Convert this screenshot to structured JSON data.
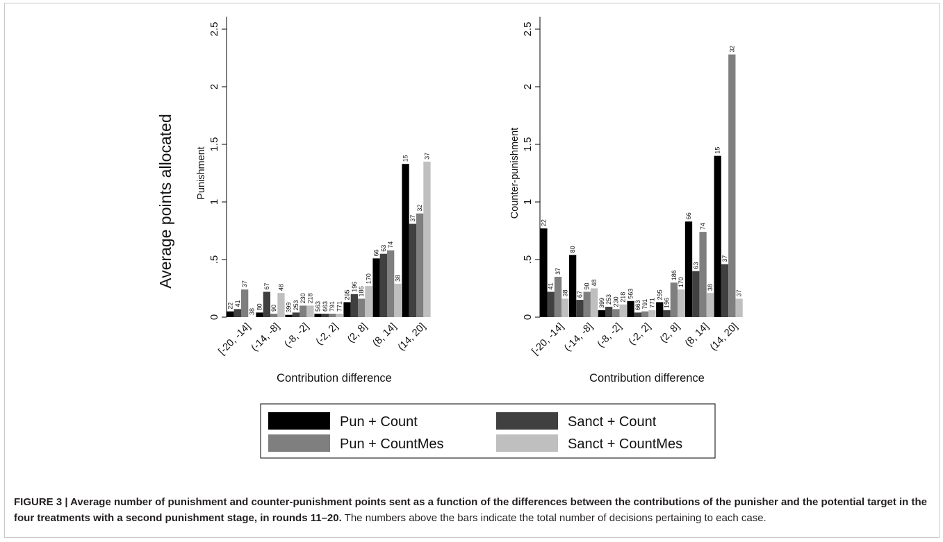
{
  "chart_data": [
    {
      "type": "bar",
      "ylabel": "Punishment",
      "xlabel": "Contribution difference",
      "categories": [
        "[-20, -14]",
        "(-14, -8]",
        "(-8, -2]",
        "(-2, 2]",
        "(2, 8]",
        "(8, 14]",
        "(14, 20]"
      ],
      "yticks": [
        "0",
        ".5",
        "1",
        "1.5",
        "2",
        "2.5"
      ],
      "ylim": [
        0,
        2.5
      ],
      "series": [
        {
          "name": "Pun + Count",
          "values": [
            0.05,
            0.04,
            0.02,
            0.03,
            0.13,
            0.51,
            1.33
          ],
          "counts": [
            "22",
            "80",
            "399",
            "563",
            "295",
            "66",
            "15"
          ]
        },
        {
          "name": "Sanct + Count",
          "values": [
            0.07,
            0.22,
            0.04,
            0.03,
            0.2,
            0.55,
            0.81
          ],
          "counts": [
            "41",
            "67",
            "253",
            "663",
            "196",
            "63",
            "37"
          ]
        },
        {
          "name": "Pun + CountMes",
          "values": [
            0.24,
            0.03,
            0.1,
            0.03,
            0.16,
            0.58,
            0.9
          ],
          "counts": [
            "37",
            "90",
            "230",
            "791",
            "186",
            "74",
            "32"
          ]
        },
        {
          "name": "Sanct + CountMes",
          "values": [
            0.0,
            0.21,
            0.1,
            0.03,
            0.27,
            0.29,
            1.35
          ],
          "counts": [
            "38",
            "48",
            "218",
            "771",
            "170",
            "38",
            "37"
          ]
        }
      ]
    },
    {
      "type": "bar",
      "ylabel": "Counter-punishment",
      "xlabel": "Contribution difference",
      "categories": [
        "[-20, -14]",
        "(-14, -8]",
        "(-8, -2]",
        "(-2, 2]",
        "(2, 8]",
        "(8, 14]",
        "(14, 20]"
      ],
      "yticks": [
        "0",
        ".5",
        "1",
        "1.5",
        "2",
        "2.5"
      ],
      "ylim": [
        0,
        2.5
      ],
      "series": [
        {
          "name": "Pun + Count",
          "values": [
            0.77,
            0.54,
            0.06,
            0.14,
            0.13,
            0.83,
            1.4
          ],
          "counts": [
            "22",
            "80",
            "399",
            "563",
            "295",
            "66",
            "15"
          ]
        },
        {
          "name": "Sanct + Count",
          "values": [
            0.22,
            0.15,
            0.09,
            0.04,
            0.06,
            0.4,
            0.46
          ],
          "counts": [
            "41",
            "67",
            "253",
            "663",
            "196",
            "63",
            "37"
          ]
        },
        {
          "name": "Pun + CountMes",
          "values": [
            0.35,
            0.22,
            0.07,
            0.05,
            0.3,
            0.74,
            2.28
          ],
          "counts": [
            "37",
            "90",
            "230",
            "791",
            "186",
            "74",
            "32"
          ]
        },
        {
          "name": "Sanct + CountMes",
          "values": [
            0.16,
            0.25,
            0.11,
            0.06,
            0.24,
            0.21,
            0.16
          ],
          "counts": [
            "38",
            "48",
            "218",
            "771",
            "170",
            "38",
            "37"
          ]
        }
      ]
    }
  ],
  "y_axis_title": "Average points allocated",
  "legend": {
    "placement": "bottom-center",
    "items": [
      {
        "label": "Pun + Count",
        "color": "#000000"
      },
      {
        "label": "Sanct + Count",
        "color": "#404040"
      },
      {
        "label": "Pun + CountMes",
        "color": "#7f7f7f"
      },
      {
        "label": "Sanct + CountMes",
        "color": "#bfbfbf"
      }
    ]
  },
  "caption": {
    "figure_label": "FIGURE 3 | Average number of punishment and counter-punishment points sent as a function of the differences between the contributions of the punisher and the potential target in the four treatments with a second punishment stage, in rounds 11–20.",
    "text": " The numbers above the bars indicate the total number of decisions pertaining to each case."
  }
}
